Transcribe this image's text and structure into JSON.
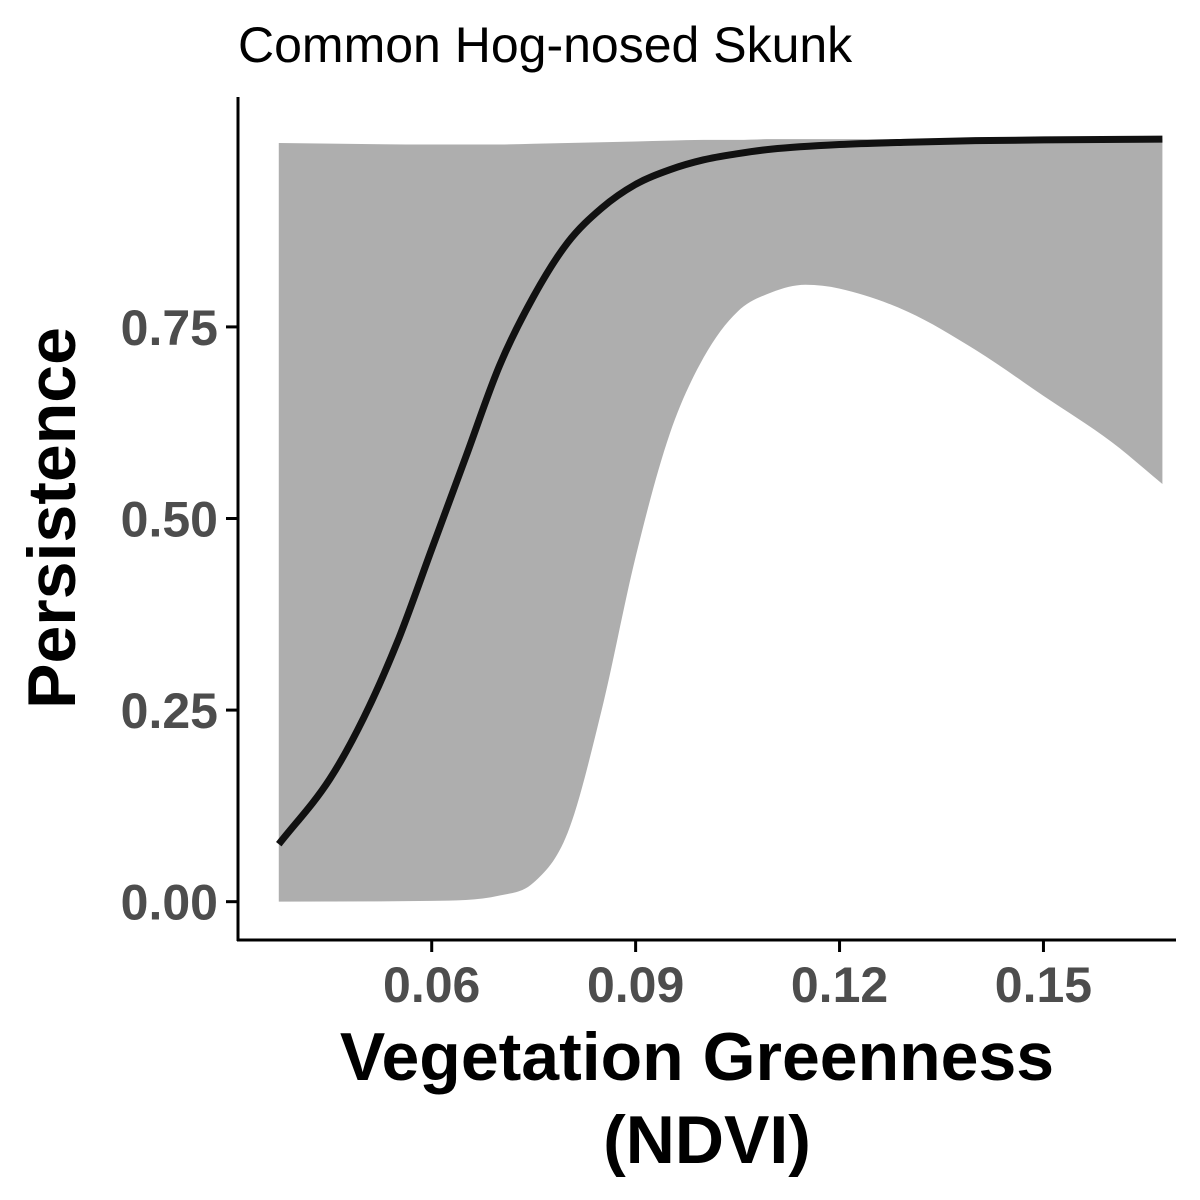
{
  "chart_data": {
    "type": "line",
    "title": "Common Hog-nosed Skunk",
    "xlabel": "Vegetation Greenness (NDVI)",
    "xlabel_lines": [
      "Vegetation Greenness",
      "(NDVI)"
    ],
    "ylabel": "Persistence",
    "xlim": [
      0.0315,
      0.1695
    ],
    "ylim": [
      -0.05,
      1.05
    ],
    "x_ticks": [
      0.06,
      0.09,
      0.12,
      0.15
    ],
    "x_tick_labels": [
      "0.06",
      "0.09",
      "0.12",
      "0.15"
    ],
    "y_ticks": [
      0.0,
      0.25,
      0.5,
      0.75
    ],
    "y_tick_labels": [
      "0.00",
      "0.25",
      "0.50",
      "0.75"
    ],
    "grid": false,
    "legend": "none",
    "colors": {
      "line": "#111111",
      "ribbon": "#aeaeae",
      "axis": "#000000",
      "tick_label": "#4d4d4d"
    },
    "series": [
      {
        "x": [
          0.0375,
          0.045,
          0.05,
          0.055,
          0.06,
          0.065,
          0.07,
          0.075,
          0.08,
          0.085,
          0.09,
          0.095,
          0.1,
          0.105,
          0.11,
          0.12,
          0.13,
          0.14,
          0.15,
          0.1675
        ],
        "values": [
          0.075,
          0.16,
          0.24,
          0.34,
          0.46,
          0.58,
          0.7,
          0.79,
          0.86,
          0.905,
          0.936,
          0.955,
          0.968,
          0.976,
          0.982,
          0.988,
          0.991,
          0.993,
          0.994,
          0.995
        ]
      }
    ],
    "ribbon": {
      "x": [
        0.0375,
        0.06,
        0.07,
        0.075,
        0.08,
        0.085,
        0.09,
        0.095,
        0.1,
        0.105,
        0.11,
        0.115,
        0.12,
        0.13,
        0.14,
        0.15,
        0.16,
        0.1675
      ],
      "lower": [
        0.0,
        0.001,
        0.008,
        0.025,
        0.09,
        0.25,
        0.45,
        0.61,
        0.71,
        0.77,
        0.795,
        0.805,
        0.8,
        0.77,
        0.72,
        0.66,
        0.6,
        0.545
      ],
      "upper": [
        0.99,
        0.988,
        0.988,
        0.989,
        0.99,
        0.991,
        0.992,
        0.993,
        0.994,
        0.994,
        0.995,
        0.995,
        0.995,
        0.995,
        0.995,
        0.995,
        0.995,
        0.995
      ]
    }
  }
}
